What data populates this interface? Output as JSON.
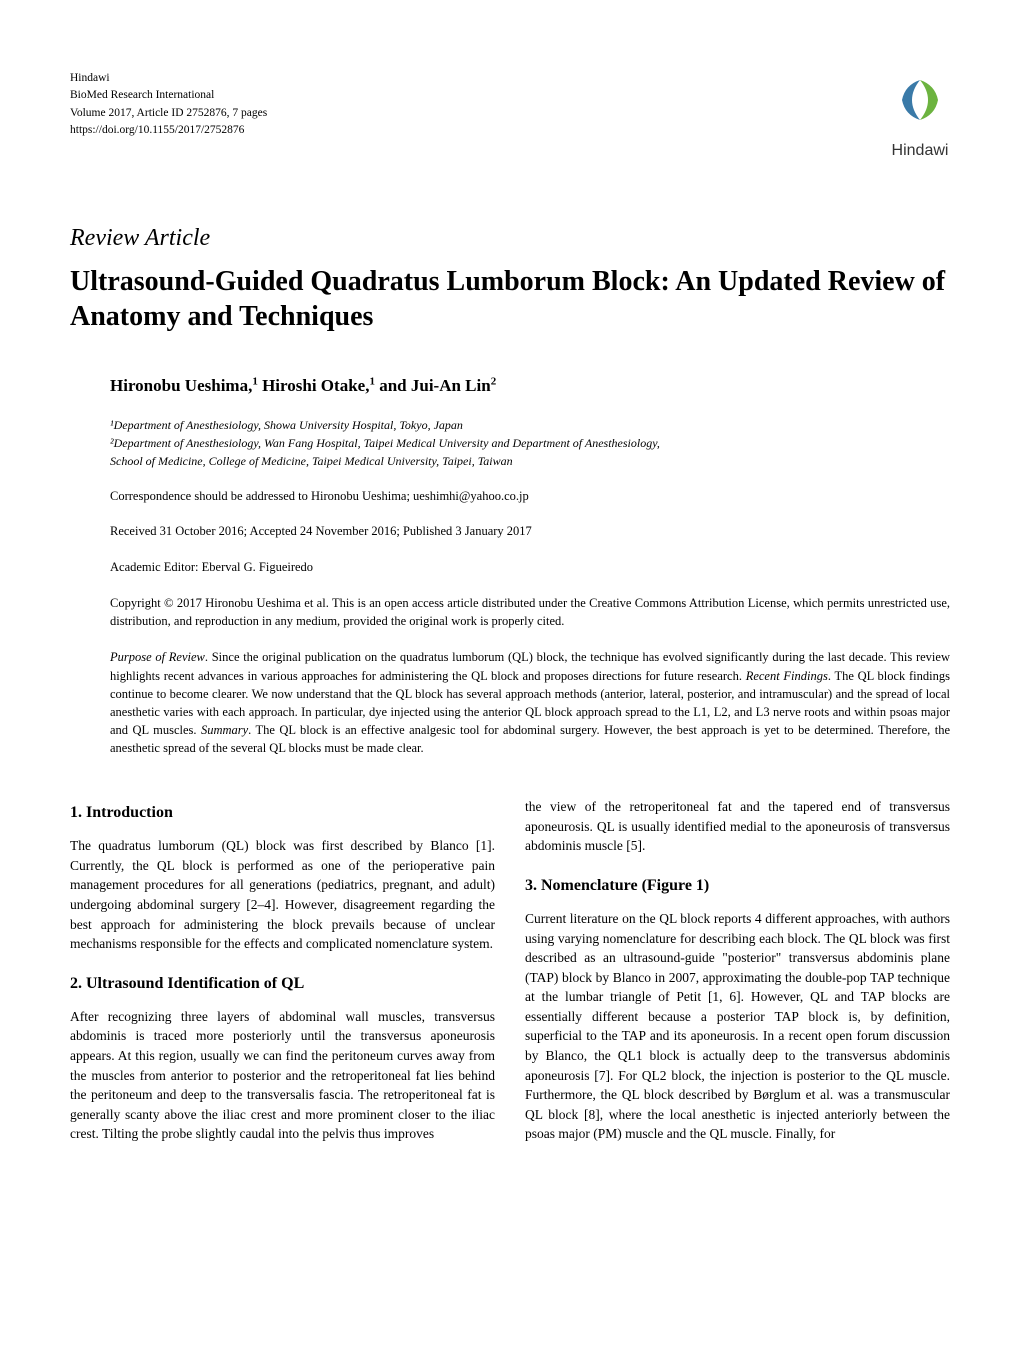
{
  "header": {
    "publisher": "Hindawi",
    "journal": "BioMed Research International",
    "volume_line": "Volume 2017, Article ID 2752876, 7 pages",
    "doi": "https://doi.org/10.1155/2017/2752876",
    "logo_text": "Hindawi",
    "logo_color_primary": "#6cb33f",
    "logo_color_secondary": "#3a7aa8"
  },
  "article_type": "Review Article",
  "title": "Ultrasound-Guided Quadratus Lumborum Block: An Updated Review of Anatomy and Techniques",
  "authors_html": "Hironobu Ueshima,<sup>1</sup> Hiroshi Otake,<sup>1</sup> and Jui-An Lin<sup>2</sup>",
  "affiliations": {
    "a1": "¹Department of Anesthesiology, Showa University Hospital, Tokyo, Japan",
    "a2": "²Department of Anesthesiology, Wan Fang Hospital, Taipei Medical University and Department of Anesthesiology,",
    "a2b": " School of Medicine, College of Medicine, Taipei Medical University, Taipei, Taiwan"
  },
  "correspondence": "Correspondence should be addressed to Hironobu Ueshima; ueshimhi@yahoo.co.jp",
  "dates": "Received 31 October 2016; Accepted 24 November 2016; Published 3 January 2017",
  "editor": "Academic Editor: Eberval G. Figueiredo",
  "copyright": "Copyright © 2017 Hironobu Ueshima et al. This is an open access article distributed under the Creative Commons Attribution License, which permits unrestricted use, distribution, and reproduction in any medium, provided the original work is properly cited.",
  "abstract": {
    "purpose_label": "Purpose of Review",
    "purpose": ". Since the original publication on the quadratus lumborum (QL) block, the technique has evolved significantly during the last decade. This review highlights recent advances in various approaches for administering the QL block and proposes directions for future research. ",
    "findings_label": "Recent Findings",
    "findings": ". The QL block findings continue to become clearer. We now understand that the QL block has several approach methods (anterior, lateral, posterior, and intramuscular) and the spread of local anesthetic varies with each approach. In particular, dye injected using the anterior QL block approach spread to the L1, L2, and L3 nerve roots and within psoas major and QL muscles. ",
    "summary_label": "Summary",
    "summary": ". The QL block is an effective analgesic tool for abdominal surgery. However, the best approach is yet to be determined. Therefore, the anesthetic spread of the several QL blocks must be made clear."
  },
  "sections": {
    "s1": {
      "heading": "1. Introduction",
      "body": "The quadratus lumborum (QL) block was first described by Blanco [1]. Currently, the QL block is performed as one of the perioperative pain management procedures for all generations (pediatrics, pregnant, and adult) undergoing abdominal surgery [2–4]. However, disagreement regarding the best approach for administering the block prevails because of unclear mechanisms responsible for the effects and complicated nomenclature system."
    },
    "s2": {
      "heading": "2. Ultrasound Identification of QL",
      "body": "After recognizing three layers of abdominal wall muscles, transversus abdominis is traced more posteriorly until the transversus aponeurosis appears. At this region, usually we can find the peritoneum curves away from the muscles from anterior to posterior and the retroperitoneal fat lies behind the peritoneum and deep to the transversalis fascia. The retroperitoneal fat is generally scanty above the iliac crest and more prominent closer to the iliac crest. Tilting the probe slightly caudal into the pelvis thus improves"
    },
    "s2_cont": "the view of the retroperitoneal fat and the tapered end of transversus aponeurosis. QL is usually identified medial to the aponeurosis of transversus abdominis muscle [5].",
    "s3": {
      "heading": "3. Nomenclature (Figure 1)",
      "body": "Current literature on the QL block reports 4 different approaches, with authors using varying nomenclature for describing each block. The QL block was first described as an ultrasound-guide \"posterior\" transversus abdominis plane (TAP) block by Blanco in 2007, approximating the double-pop TAP technique at the lumbar triangle of Petit [1, 6]. However, QL and TAP blocks are essentially different because a posterior TAP block is, by definition, superficial to the TAP and its aponeurosis. In a recent open forum discussion by Blanco, the QL1 block is actually deep to the transversus abdominis aponeurosis [7]. For QL2 block, the injection is posterior to the QL muscle. Furthermore, the QL block described by Børglum et al. was a transmuscular QL block [8], where the local anesthetic is injected anteriorly between the psoas major (PM) muscle and the QL muscle. Finally, for"
    }
  }
}
